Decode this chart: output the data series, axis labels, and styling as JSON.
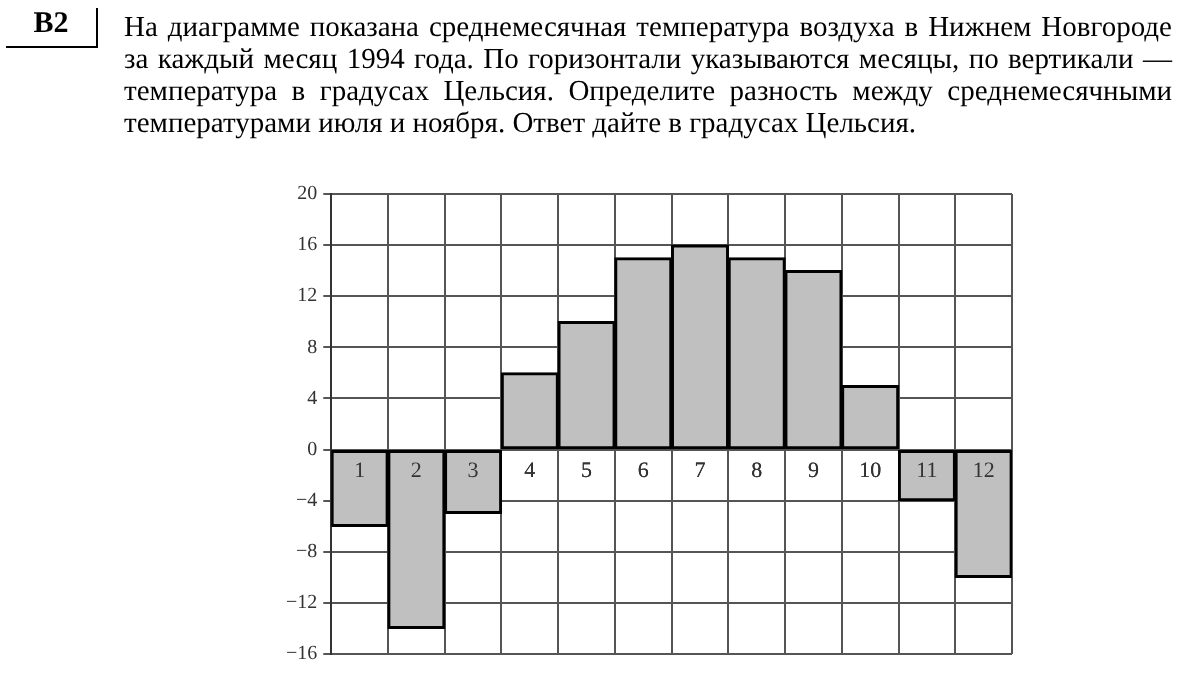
{
  "chart_data": {
    "type": "bar",
    "title": "На диаграмме показана среднемесячная температура воздуха в Нижнем Новгороде за каждый месяц 1994 года. По горизонтали указываются месяцы, по вертикали — температура в градусах Цельсия. Определите разность между среднемесячными температурами июля и ноября. Ответ дайте в градусах Цельсия.",
    "annotations": [
      "B2"
    ],
    "categories": [
      "1",
      "2",
      "3",
      "4",
      "5",
      "6",
      "7",
      "8",
      "9",
      "10",
      "11",
      "12"
    ],
    "values": [
      -6,
      -14,
      -5,
      6,
      10,
      15,
      16,
      15,
      14,
      5,
      -4,
      -10
    ],
    "color": "#c0c0c0",
    "ylim": [
      -16,
      20
    ],
    "yticks": [
      {
        "value": -16,
        "label": "−16"
      },
      {
        "value": -12,
        "label": "−12"
      },
      {
        "value": -8,
        "label": "−8"
      },
      {
        "value": -4,
        "label": "−4"
      },
      0,
      4,
      8,
      12,
      16,
      20
    ],
    "grid": true
  }
}
